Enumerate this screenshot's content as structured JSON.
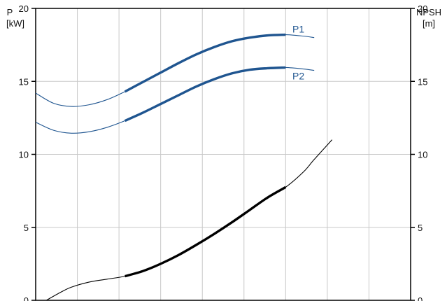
{
  "chart_data": {
    "type": "line",
    "left_axis": {
      "label_line1": "P",
      "label_line2": "[kW]",
      "ylim": [
        0,
        20
      ],
      "ticks": [
        "0",
        "5",
        "10",
        "15",
        "20"
      ]
    },
    "right_axis": {
      "label_line1": "NPSH",
      "label_line2": "[m]",
      "ylim": [
        0,
        20
      ],
      "ticks": [
        "0",
        "5",
        "10",
        "15",
        "20"
      ]
    },
    "grid": true,
    "vertical_gridline_count": 8,
    "series": [
      {
        "name": "P1",
        "axis": "left",
        "color": "#1f5590",
        "points": [
          [
            0,
            14.2
          ],
          [
            0.05,
            13.5
          ],
          [
            0.1,
            13.28
          ],
          [
            0.15,
            13.4
          ],
          [
            0.2,
            13.75
          ],
          [
            0.25,
            14.3
          ],
          [
            0.3,
            14.95
          ],
          [
            0.35,
            15.6
          ],
          [
            0.4,
            16.25
          ],
          [
            0.45,
            16.85
          ],
          [
            0.5,
            17.35
          ],
          [
            0.55,
            17.75
          ],
          [
            0.6,
            18.0
          ],
          [
            0.65,
            18.15
          ],
          [
            0.7,
            18.2
          ],
          [
            0.75,
            18.1
          ],
          [
            0.78,
            18.0
          ]
        ],
        "bold_range": [
          0.25,
          0.7
        ]
      },
      {
        "name": "P2",
        "axis": "left",
        "color": "#1f5590",
        "points": [
          [
            0,
            12.2
          ],
          [
            0.05,
            11.65
          ],
          [
            0.1,
            11.45
          ],
          [
            0.15,
            11.55
          ],
          [
            0.2,
            11.85
          ],
          [
            0.25,
            12.3
          ],
          [
            0.3,
            12.85
          ],
          [
            0.35,
            13.45
          ],
          [
            0.4,
            14.05
          ],
          [
            0.45,
            14.65
          ],
          [
            0.5,
            15.15
          ],
          [
            0.55,
            15.55
          ],
          [
            0.6,
            15.8
          ],
          [
            0.65,
            15.9
          ],
          [
            0.7,
            15.95
          ],
          [
            0.75,
            15.85
          ],
          [
            0.78,
            15.75
          ]
        ],
        "bold_range": [
          0.25,
          0.7
        ]
      },
      {
        "name": "",
        "axis": "right",
        "color": "#000000",
        "points": [
          [
            0.03,
            0
          ],
          [
            0.07,
            0.55
          ],
          [
            0.1,
            0.9
          ],
          [
            0.15,
            1.25
          ],
          [
            0.2,
            1.45
          ],
          [
            0.25,
            1.65
          ],
          [
            0.3,
            2.0
          ],
          [
            0.35,
            2.5
          ],
          [
            0.4,
            3.1
          ],
          [
            0.45,
            3.8
          ],
          [
            0.5,
            4.55
          ],
          [
            0.55,
            5.35
          ],
          [
            0.6,
            6.2
          ],
          [
            0.65,
            7.05
          ],
          [
            0.7,
            7.75
          ],
          [
            0.75,
            8.8
          ],
          [
            0.78,
            9.65
          ],
          [
            0.83,
            11.0
          ]
        ],
        "bold_range": [
          0.25,
          0.7
        ]
      }
    ]
  }
}
